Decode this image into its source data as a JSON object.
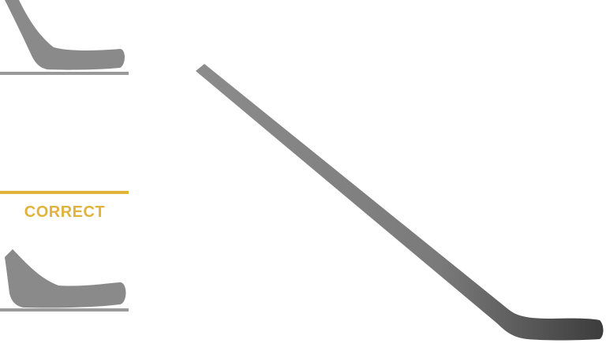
{
  "label": "CORRECT"
}
